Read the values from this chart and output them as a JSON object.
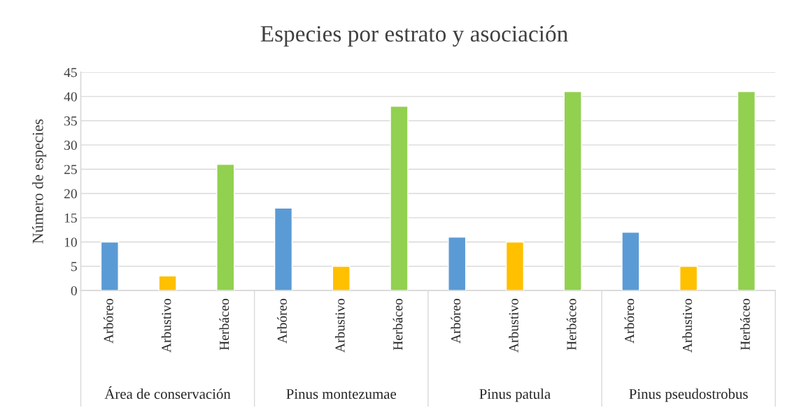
{
  "chart_data": {
    "type": "bar",
    "title": "Especies por estrato y asociación",
    "ylabel": "Número de especies",
    "categories": [
      "Arbóreo",
      "Arbustivo",
      "Herbáceo",
      "Arbóreo",
      "Arbustivo",
      "Herbáceo",
      "Arbóreo",
      "Arbustivo",
      "Herbáceo",
      "Arbóreo",
      "Arbustivo",
      "Herbáceo"
    ],
    "values": [
      10,
      3,
      26,
      17,
      5,
      38,
      11,
      10,
      41,
      12,
      5,
      41
    ],
    "colors": [
      "#5b9bd5",
      "#ffc000",
      "#92d050",
      "#5b9bd5",
      "#ffc000",
      "#92d050",
      "#5b9bd5",
      "#ffc000",
      "#92d050",
      "#5b9bd5",
      "#ffc000",
      "#92d050"
    ],
    "annotations": [
      "Área de conservación",
      "Pinus montezumae",
      "Pinus patula",
      "Pinus pseudostrobus"
    ],
    "ylim": [
      0,
      45
    ],
    "yticks": [
      0,
      5,
      10,
      15,
      20,
      25,
      30,
      35,
      40,
      45
    ],
    "grid": "y"
  }
}
